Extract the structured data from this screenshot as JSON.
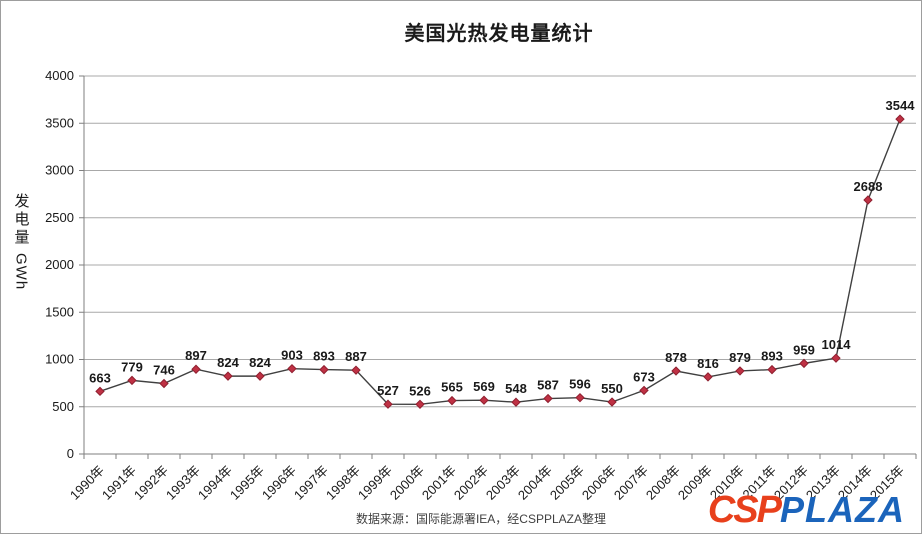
{
  "page": {
    "title": "美国光热发电量统计"
  },
  "y_axis_title": {
    "cjk": "发电量",
    "unit": "GWh"
  },
  "chart_data": {
    "type": "line",
    "title": "美国光热发电量统计",
    "categories": [
      "1990年",
      "1991年",
      "1992年",
      "1993年",
      "1994年",
      "1995年",
      "1996年",
      "1997年",
      "1998年",
      "1999年",
      "2000年",
      "2001年",
      "2002年",
      "2003年",
      "2004年",
      "2005年",
      "2006年",
      "2007年",
      "2008年",
      "2009年",
      "2010年",
      "2011年",
      "2012年",
      "2013年",
      "2014年",
      "2015年"
    ],
    "values": [
      663,
      779,
      746,
      897,
      824,
      824,
      903,
      893,
      887,
      527,
      526,
      565,
      569,
      548,
      587,
      596,
      550,
      673,
      878,
      816,
      879,
      893,
      959,
      1014,
      2688,
      3544
    ],
    "xlabel": "",
    "ylabel": "发电量 GWh",
    "ylim": [
      0,
      4000
    ],
    "ytick_step": 500,
    "grid": true,
    "legend_position": "none",
    "marker": "diamond",
    "data_labels": true,
    "colors": {
      "marker_fill": "#bf3144",
      "marker_edge": "#8f2030",
      "line": "#404040",
      "grid": "#a8a8a8",
      "axis": "#7f7f7f",
      "text": "#1a1a1a"
    }
  },
  "footer": {
    "source": "数据来源：国际能源署IEA，经CSPPLAZA整理"
  },
  "logo": {
    "csp": "CSP",
    "plaza": "PLAZA",
    "csp_color": "#e8401c",
    "plaza_color": "#1b64bb"
  }
}
